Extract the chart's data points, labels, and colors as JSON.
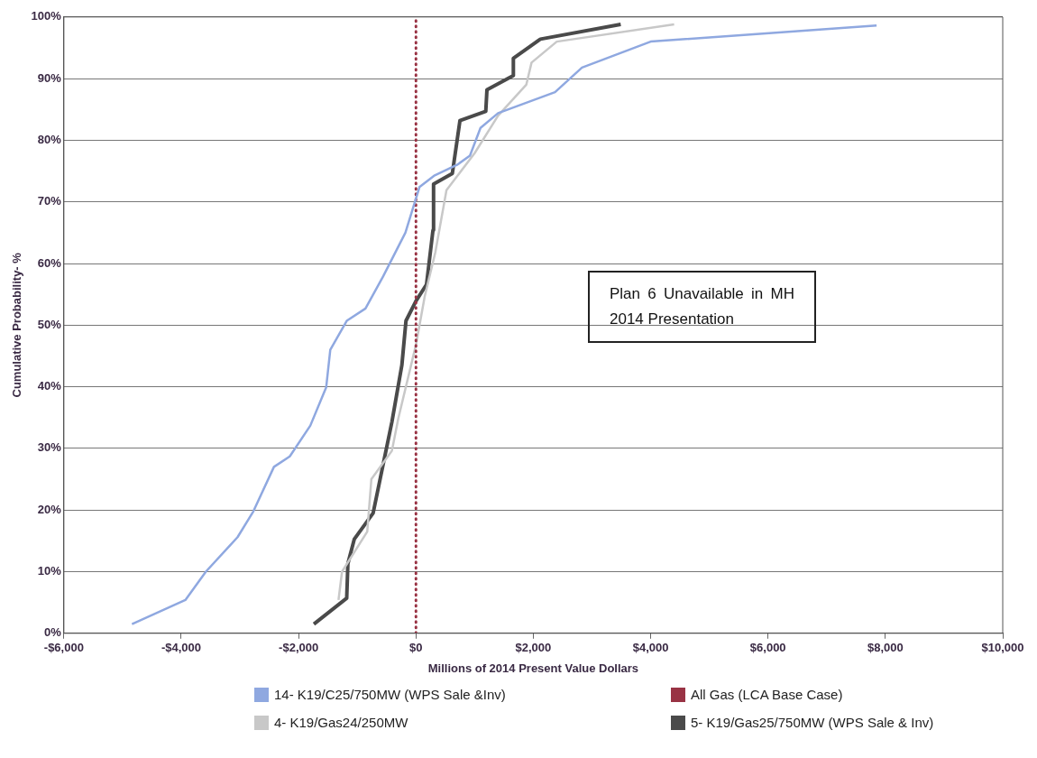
{
  "chart_data": {
    "type": "line",
    "xlabel": "Millions of 2014 Present Value Dollars",
    "ylabel": "Cumulative Probability- %",
    "xlim": [
      -6000,
      10000
    ],
    "xticks": [
      {
        "value": -6000,
        "label": "-$6,000"
      },
      {
        "value": -4000,
        "label": "-$4,000"
      },
      {
        "value": -2000,
        "label": "-$2,000"
      },
      {
        "value": 0,
        "label": "$0"
      },
      {
        "value": 2000,
        "label": "$2,000"
      },
      {
        "value": 4000,
        "label": "$4,000"
      },
      {
        "value": 6000,
        "label": "$6,000"
      },
      {
        "value": 8000,
        "label": "$8,000"
      },
      {
        "value": 10000,
        "label": "$10,000"
      }
    ],
    "ylim": [
      0,
      100
    ],
    "yticks": [
      {
        "value": 0,
        "label": "0%"
      },
      {
        "value": 10,
        "label": "10%"
      },
      {
        "value": 20,
        "label": "20%"
      },
      {
        "value": 30,
        "label": "30%"
      },
      {
        "value": 40,
        "label": "40%"
      },
      {
        "value": 50,
        "label": "50%"
      },
      {
        "value": 60,
        "label": "60%"
      },
      {
        "value": 70,
        "label": "70%"
      },
      {
        "value": 80,
        "label": "80%"
      },
      {
        "value": 90,
        "label": "90%"
      },
      {
        "value": 100,
        "label": "100%"
      }
    ],
    "grid": "y",
    "legend": "bottom",
    "annotations": [
      "Plan 6 Unavailable in MH 2014 Presentation"
    ],
    "series": [
      {
        "name": "14- K19/C25/750MW (WPS Sale &Inv)",
        "color": "#8fa8e0",
        "x": [
          -4840,
          -3930,
          -3580,
          -3040,
          -2770,
          -2420,
          -2150,
          -1800,
          -1530,
          -1460,
          -1180,
          -860,
          -560,
          -180,
          60,
          320,
          700,
          920,
          1100,
          1400,
          2370,
          2830,
          4000,
          7850
        ],
        "values": [
          1.5,
          5.4,
          10,
          15.6,
          19.8,
          27,
          28.7,
          33.7,
          39.9,
          46,
          50.7,
          52.7,
          57.9,
          65,
          72.4,
          74.3,
          76,
          77.5,
          82,
          84.4,
          87.8,
          91.8,
          96,
          98.6
        ]
      },
      {
        "name": "All Gas (LCA Base Case)",
        "color": "#993344",
        "line_style": "dotted",
        "x": [
          0,
          0
        ],
        "values": [
          0,
          100
        ]
      },
      {
        "name": "4- K19/Gas24/250MW",
        "color": "#c8c8c8",
        "x": [
          -1320,
          -1260,
          -830,
          -760,
          -410,
          -300,
          0,
          150,
          330,
          520,
          1000,
          1400,
          1880,
          1970,
          2400,
          4400
        ],
        "values": [
          5.4,
          10,
          16.5,
          25,
          29.6,
          34.9,
          46.8,
          54.7,
          61.8,
          71.9,
          77.9,
          84,
          89,
          92.6,
          96,
          98.8
        ]
      },
      {
        "name": "5- K19/Gas25/750MW (WPS Sale & Inv)",
        "color": "#4a4a4a",
        "x": [
          -1740,
          -1180,
          -1160,
          -1050,
          -730,
          -410,
          -240,
          -170,
          0,
          180,
          290,
          300,
          620,
          750,
          1190,
          1210,
          1660,
          1660,
          2120,
          3490
        ],
        "values": [
          1.5,
          5.7,
          11.3,
          15.3,
          19.5,
          34.3,
          43.5,
          50.7,
          53.9,
          56.6,
          65.4,
          72.9,
          74.6,
          83.2,
          84.7,
          88.2,
          90.5,
          93.3,
          96.4,
          98.8
        ]
      }
    ]
  }
}
